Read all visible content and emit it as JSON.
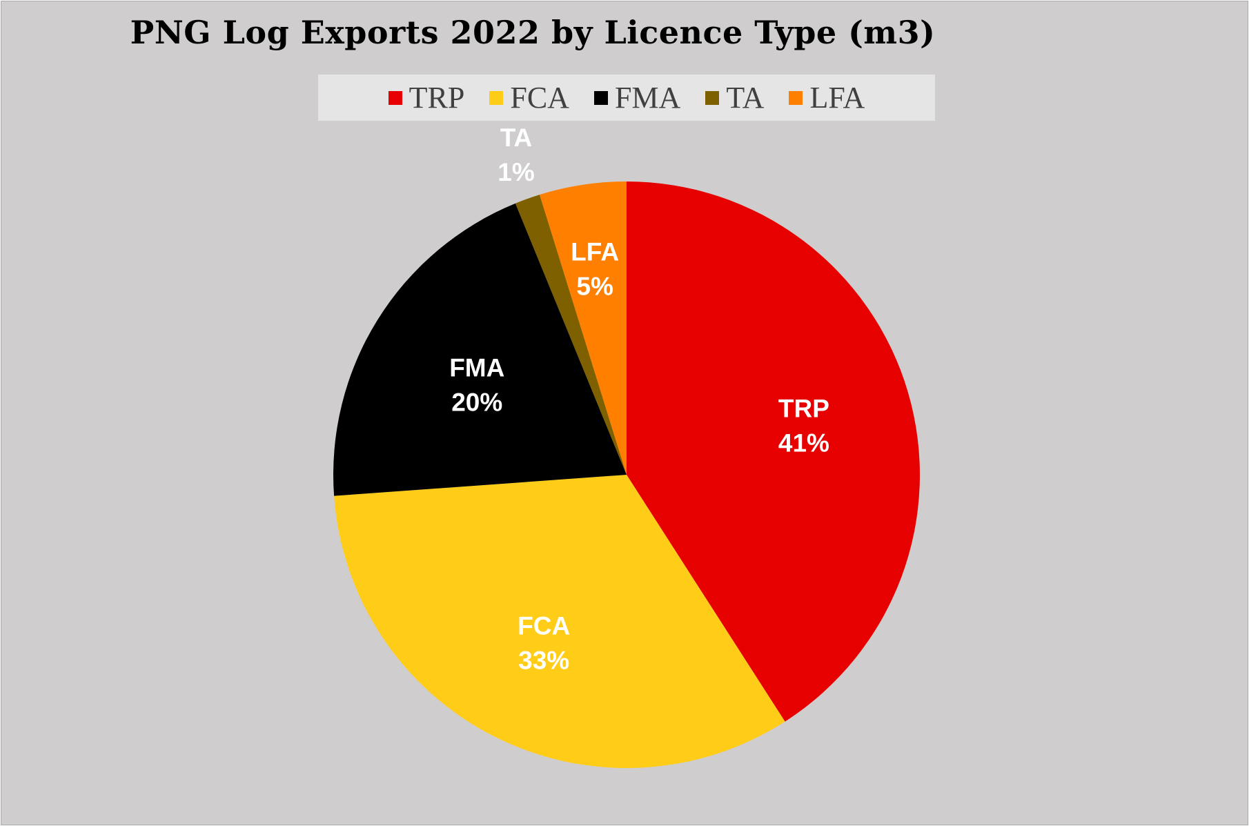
{
  "chart_data": {
    "type": "pie",
    "title": "PNG Log Exports 2022 by Licence Type (m3)",
    "legend_position": "top",
    "slices": [
      {
        "name": "TRP",
        "value": 41,
        "label": "41%",
        "color": "#e60000"
      },
      {
        "name": "FCA",
        "value": 33,
        "label": "33%",
        "color": "#ffcc17"
      },
      {
        "name": "FMA",
        "value": 20,
        "label": "20%",
        "color": "#000000"
      },
      {
        "name": "TA",
        "value": 1.4,
        "label": "1%",
        "color": "#7f6000"
      },
      {
        "name": "LFA",
        "value": 4.8,
        "label": "5%",
        "color": "#ff7f00"
      }
    ]
  }
}
